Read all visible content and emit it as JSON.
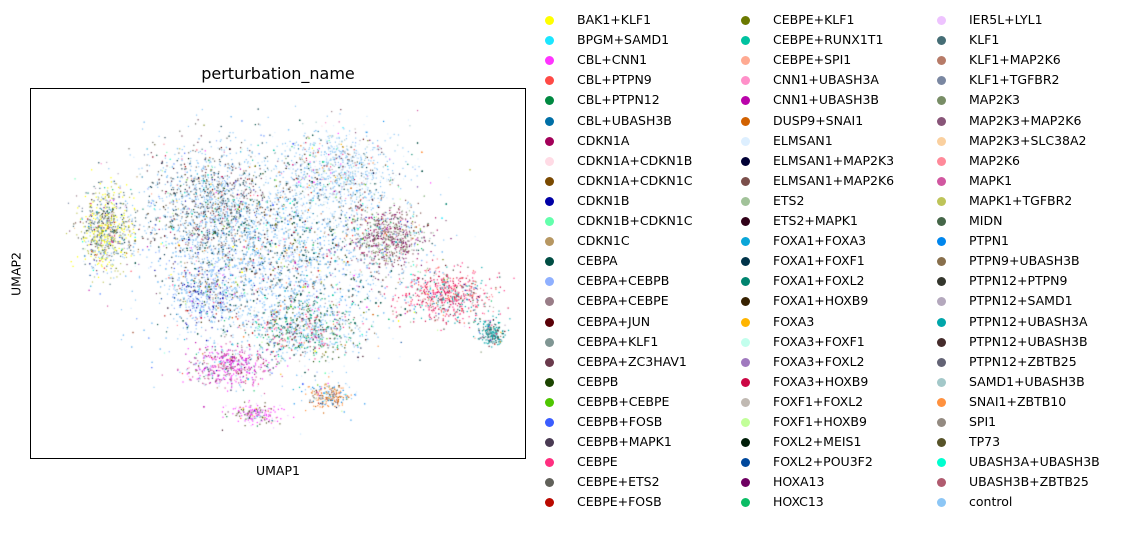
{
  "chart_data": {
    "type": "scatter",
    "title": "perturbation_name",
    "xlabel": "UMAP1",
    "ylabel": "UMAP2",
    "grid": false,
    "legend_position": "right",
    "legend_columns": 3,
    "legend": [
      {
        "label": "BAK1+KLF1",
        "color": "#ffff00"
      },
      {
        "label": "BPGM+SAMD1",
        "color": "#1ce6ff"
      },
      {
        "label": "CBL+CNN1",
        "color": "#ff34ff"
      },
      {
        "label": "CBL+PTPN9",
        "color": "#ff4a46"
      },
      {
        "label": "CBL+PTPN12",
        "color": "#008941"
      },
      {
        "label": "CBL+UBASH3B",
        "color": "#006fa6"
      },
      {
        "label": "CDKN1A",
        "color": "#a30059"
      },
      {
        "label": "CDKN1A+CDKN1B",
        "color": "#ffdbe5"
      },
      {
        "label": "CDKN1A+CDKN1C",
        "color": "#7a4900"
      },
      {
        "label": "CDKN1B",
        "color": "#0000a6"
      },
      {
        "label": "CDKN1B+CDKN1C",
        "color": "#63ffac"
      },
      {
        "label": "CDKN1C",
        "color": "#b79762"
      },
      {
        "label": "CEBPA",
        "color": "#004d43"
      },
      {
        "label": "CEBPA+CEBPB",
        "color": "#8fb0ff"
      },
      {
        "label": "CEBPA+CEBPE",
        "color": "#997d87"
      },
      {
        "label": "CEBPA+JUN",
        "color": "#5a0007"
      },
      {
        "label": "CEBPA+KLF1",
        "color": "#809693"
      },
      {
        "label": "CEBPA+ZC3HAV1",
        "color": "#6a3a4c"
      },
      {
        "label": "CEBPB",
        "color": "#1b4400"
      },
      {
        "label": "CEBPB+CEBPE",
        "color": "#4fc601"
      },
      {
        "label": "CEBPB+FOSB",
        "color": "#3b5dff"
      },
      {
        "label": "CEBPB+MAPK1",
        "color": "#4a3b53"
      },
      {
        "label": "CEBPE",
        "color": "#ff2f80"
      },
      {
        "label": "CEBPE+ETS2",
        "color": "#61615a"
      },
      {
        "label": "CEBPE+FOSB",
        "color": "#ba0900"
      },
      {
        "label": "CEBPE+KLF1",
        "color": "#6b7900"
      },
      {
        "label": "CEBPE+RUNX1T1",
        "color": "#00c2a0"
      },
      {
        "label": "CEBPE+SPI1",
        "color": "#ffaa92"
      },
      {
        "label": "CNN1+UBASH3A",
        "color": "#ff90c9"
      },
      {
        "label": "CNN1+UBASH3B",
        "color": "#b903aa"
      },
      {
        "label": "DUSP9+SNAI1",
        "color": "#d16100"
      },
      {
        "label": "ELMSAN1",
        "color": "#ddefff"
      },
      {
        "label": "ELMSAN1+MAP2K3",
        "color": "#000035"
      },
      {
        "label": "ELMSAN1+MAP2K6",
        "color": "#7b4f4b"
      },
      {
        "label": "ETS2",
        "color": "#a1c299"
      },
      {
        "label": "ETS2+MAPK1",
        "color": "#300018"
      },
      {
        "label": "FOXA1+FOXA3",
        "color": "#0aa6d8"
      },
      {
        "label": "FOXA1+FOXF1",
        "color": "#013349"
      },
      {
        "label": "FOXA1+FOXL2",
        "color": "#00846f"
      },
      {
        "label": "FOXA1+HOXB9",
        "color": "#372101"
      },
      {
        "label": "FOXA3",
        "color": "#ffb500"
      },
      {
        "label": "FOXA3+FOXF1",
        "color": "#c2ffed"
      },
      {
        "label": "FOXA3+FOXL2",
        "color": "#a079bf"
      },
      {
        "label": "FOXA3+HOXB9",
        "color": "#cc0744"
      },
      {
        "label": "FOXF1+FOXL2",
        "color": "#c0b9b2"
      },
      {
        "label": "FOXF1+HOXB9",
        "color": "#c2ff99"
      },
      {
        "label": "FOXL2+MEIS1",
        "color": "#001e09"
      },
      {
        "label": "FOXL2+POU3F2",
        "color": "#00489c"
      },
      {
        "label": "HOXA13",
        "color": "#6f0062"
      },
      {
        "label": "HOXC13",
        "color": "#0cbd66"
      },
      {
        "label": "IER5L+LYL1",
        "color": "#eec3ff"
      },
      {
        "label": "KLF1",
        "color": "#456d75"
      },
      {
        "label": "KLF1+MAP2K6",
        "color": "#b77b68"
      },
      {
        "label": "KLF1+TGFBR2",
        "color": "#7a87a1"
      },
      {
        "label": "MAP2K3",
        "color": "#788d66"
      },
      {
        "label": "MAP2K3+MAP2K6",
        "color": "#885578"
      },
      {
        "label": "MAP2K3+SLC38A2",
        "color": "#fad09f"
      },
      {
        "label": "MAP2K6",
        "color": "#ff8a9a"
      },
      {
        "label": "MAPK1",
        "color": "#d157a0"
      },
      {
        "label": "MAPK1+TGFBR2",
        "color": "#bec459"
      },
      {
        "label": "MIDN",
        "color": "#456648"
      },
      {
        "label": "PTPN1",
        "color": "#0086ed"
      },
      {
        "label": "PTPN9+UBASH3B",
        "color": "#886f4c"
      },
      {
        "label": "PTPN12+PTPN9",
        "color": "#34362d"
      },
      {
        "label": "PTPN12+SAMD1",
        "color": "#b4a8bd"
      },
      {
        "label": "PTPN12+UBASH3A",
        "color": "#00a6aa"
      },
      {
        "label": "PTPN12+UBASH3B",
        "color": "#452c2c"
      },
      {
        "label": "PTPN12+ZBTB25",
        "color": "#636375"
      },
      {
        "label": "SAMD1+UBASH3B",
        "color": "#a3c8c9"
      },
      {
        "label": "SNAI1+ZBTB10",
        "color": "#ff913f"
      },
      {
        "label": "SPI1",
        "color": "#938a81"
      },
      {
        "label": "TP73",
        "color": "#575329"
      },
      {
        "label": "UBASH3A+UBASH3B",
        "color": "#00fecf"
      },
      {
        "label": "UBASH3B+ZBTB25",
        "color": "#b05b6f"
      },
      {
        "label": "control",
        "color": "#8cc6f5"
      }
    ],
    "clusters": [
      {
        "cx": 0.5,
        "cy": 0.45,
        "rx": 0.27,
        "ry": 0.3,
        "n": 5200,
        "weights": {
          "control": 7,
          "ELMSAN1": 3,
          "CEBPA+CEBPB": 1,
          "KLF1": 1,
          "CEBPA": 1
        }
      },
      {
        "cx": 0.36,
        "cy": 0.32,
        "rx": 0.15,
        "ry": 0.18,
        "n": 1400,
        "weights": {
          "control": 5,
          "CEBPE+ETS2": 2,
          "CEBPA+ZC3HAV1": 1,
          "FOXA1+FOXF1": 1
        }
      },
      {
        "cx": 0.62,
        "cy": 0.22,
        "rx": 0.14,
        "ry": 0.12,
        "n": 900,
        "weights": {
          "control": 6,
          "ELMSAN1": 3,
          "SAMD1+UBASH3B": 1
        }
      },
      {
        "cx": 0.15,
        "cy": 0.38,
        "rx": 0.06,
        "ry": 0.12,
        "n": 800,
        "weights": {
          "BAK1+KLF1": 3,
          "KLF1": 3,
          "MAPK1+TGFBR2": 2,
          "KLF1+TGFBR2": 1,
          "control": 1
        }
      },
      {
        "cx": 0.72,
        "cy": 0.4,
        "rx": 0.08,
        "ry": 0.1,
        "n": 700,
        "weights": {
          "ELMSAN1+MAP2K6": 2,
          "MAP2K3+MAP2K6": 2,
          "ETS2": 2,
          "HOXA13": 1,
          "CDKN1A": 1
        }
      },
      {
        "cx": 0.84,
        "cy": 0.56,
        "rx": 0.1,
        "ry": 0.08,
        "n": 700,
        "weights": {
          "CEBPE": 2,
          "FOXA3+HOXB9": 2,
          "MAP2K6": 1,
          "CBL+PTPN9": 1,
          "PTPN12+UBASH3A": 1
        }
      },
      {
        "cx": 0.93,
        "cy": 0.66,
        "rx": 0.03,
        "ry": 0.04,
        "n": 220,
        "weights": {
          "PTPN12+UBASH3A": 3,
          "KLF1": 2,
          "CEBPA": 1
        }
      },
      {
        "cx": 0.4,
        "cy": 0.75,
        "rx": 0.1,
        "ry": 0.06,
        "n": 500,
        "weights": {
          "CNN1+UBASH3B": 2,
          "CBL+CNN1": 2,
          "MAPK1": 2,
          "control": 1
        }
      },
      {
        "cx": 0.6,
        "cy": 0.83,
        "rx": 0.05,
        "ry": 0.04,
        "n": 250,
        "weights": {
          "SNAI1+ZBTB10": 2,
          "PTPN1": 1,
          "DUSP9+SNAI1": 1,
          "control": 1
        }
      },
      {
        "cx": 0.45,
        "cy": 0.88,
        "rx": 0.06,
        "ry": 0.03,
        "n": 200,
        "weights": {
          "CBL+CNN1": 2,
          "IER5L+LYL1": 1,
          "TP73": 1
        }
      },
      {
        "cx": 0.55,
        "cy": 0.65,
        "rx": 0.12,
        "ry": 0.08,
        "n": 700,
        "weights": {
          "control": 3,
          "CEBPE": 1,
          "CEBPB": 1,
          "FOXA1+FOXL2": 1,
          "HOXC13": 1
        }
      },
      {
        "cx": 0.35,
        "cy": 0.55,
        "rx": 0.08,
        "ry": 0.1,
        "n": 500,
        "weights": {
          "CEBPA+CEBPB": 2,
          "control": 3,
          "CDKN1B": 1
        }
      }
    ]
  }
}
